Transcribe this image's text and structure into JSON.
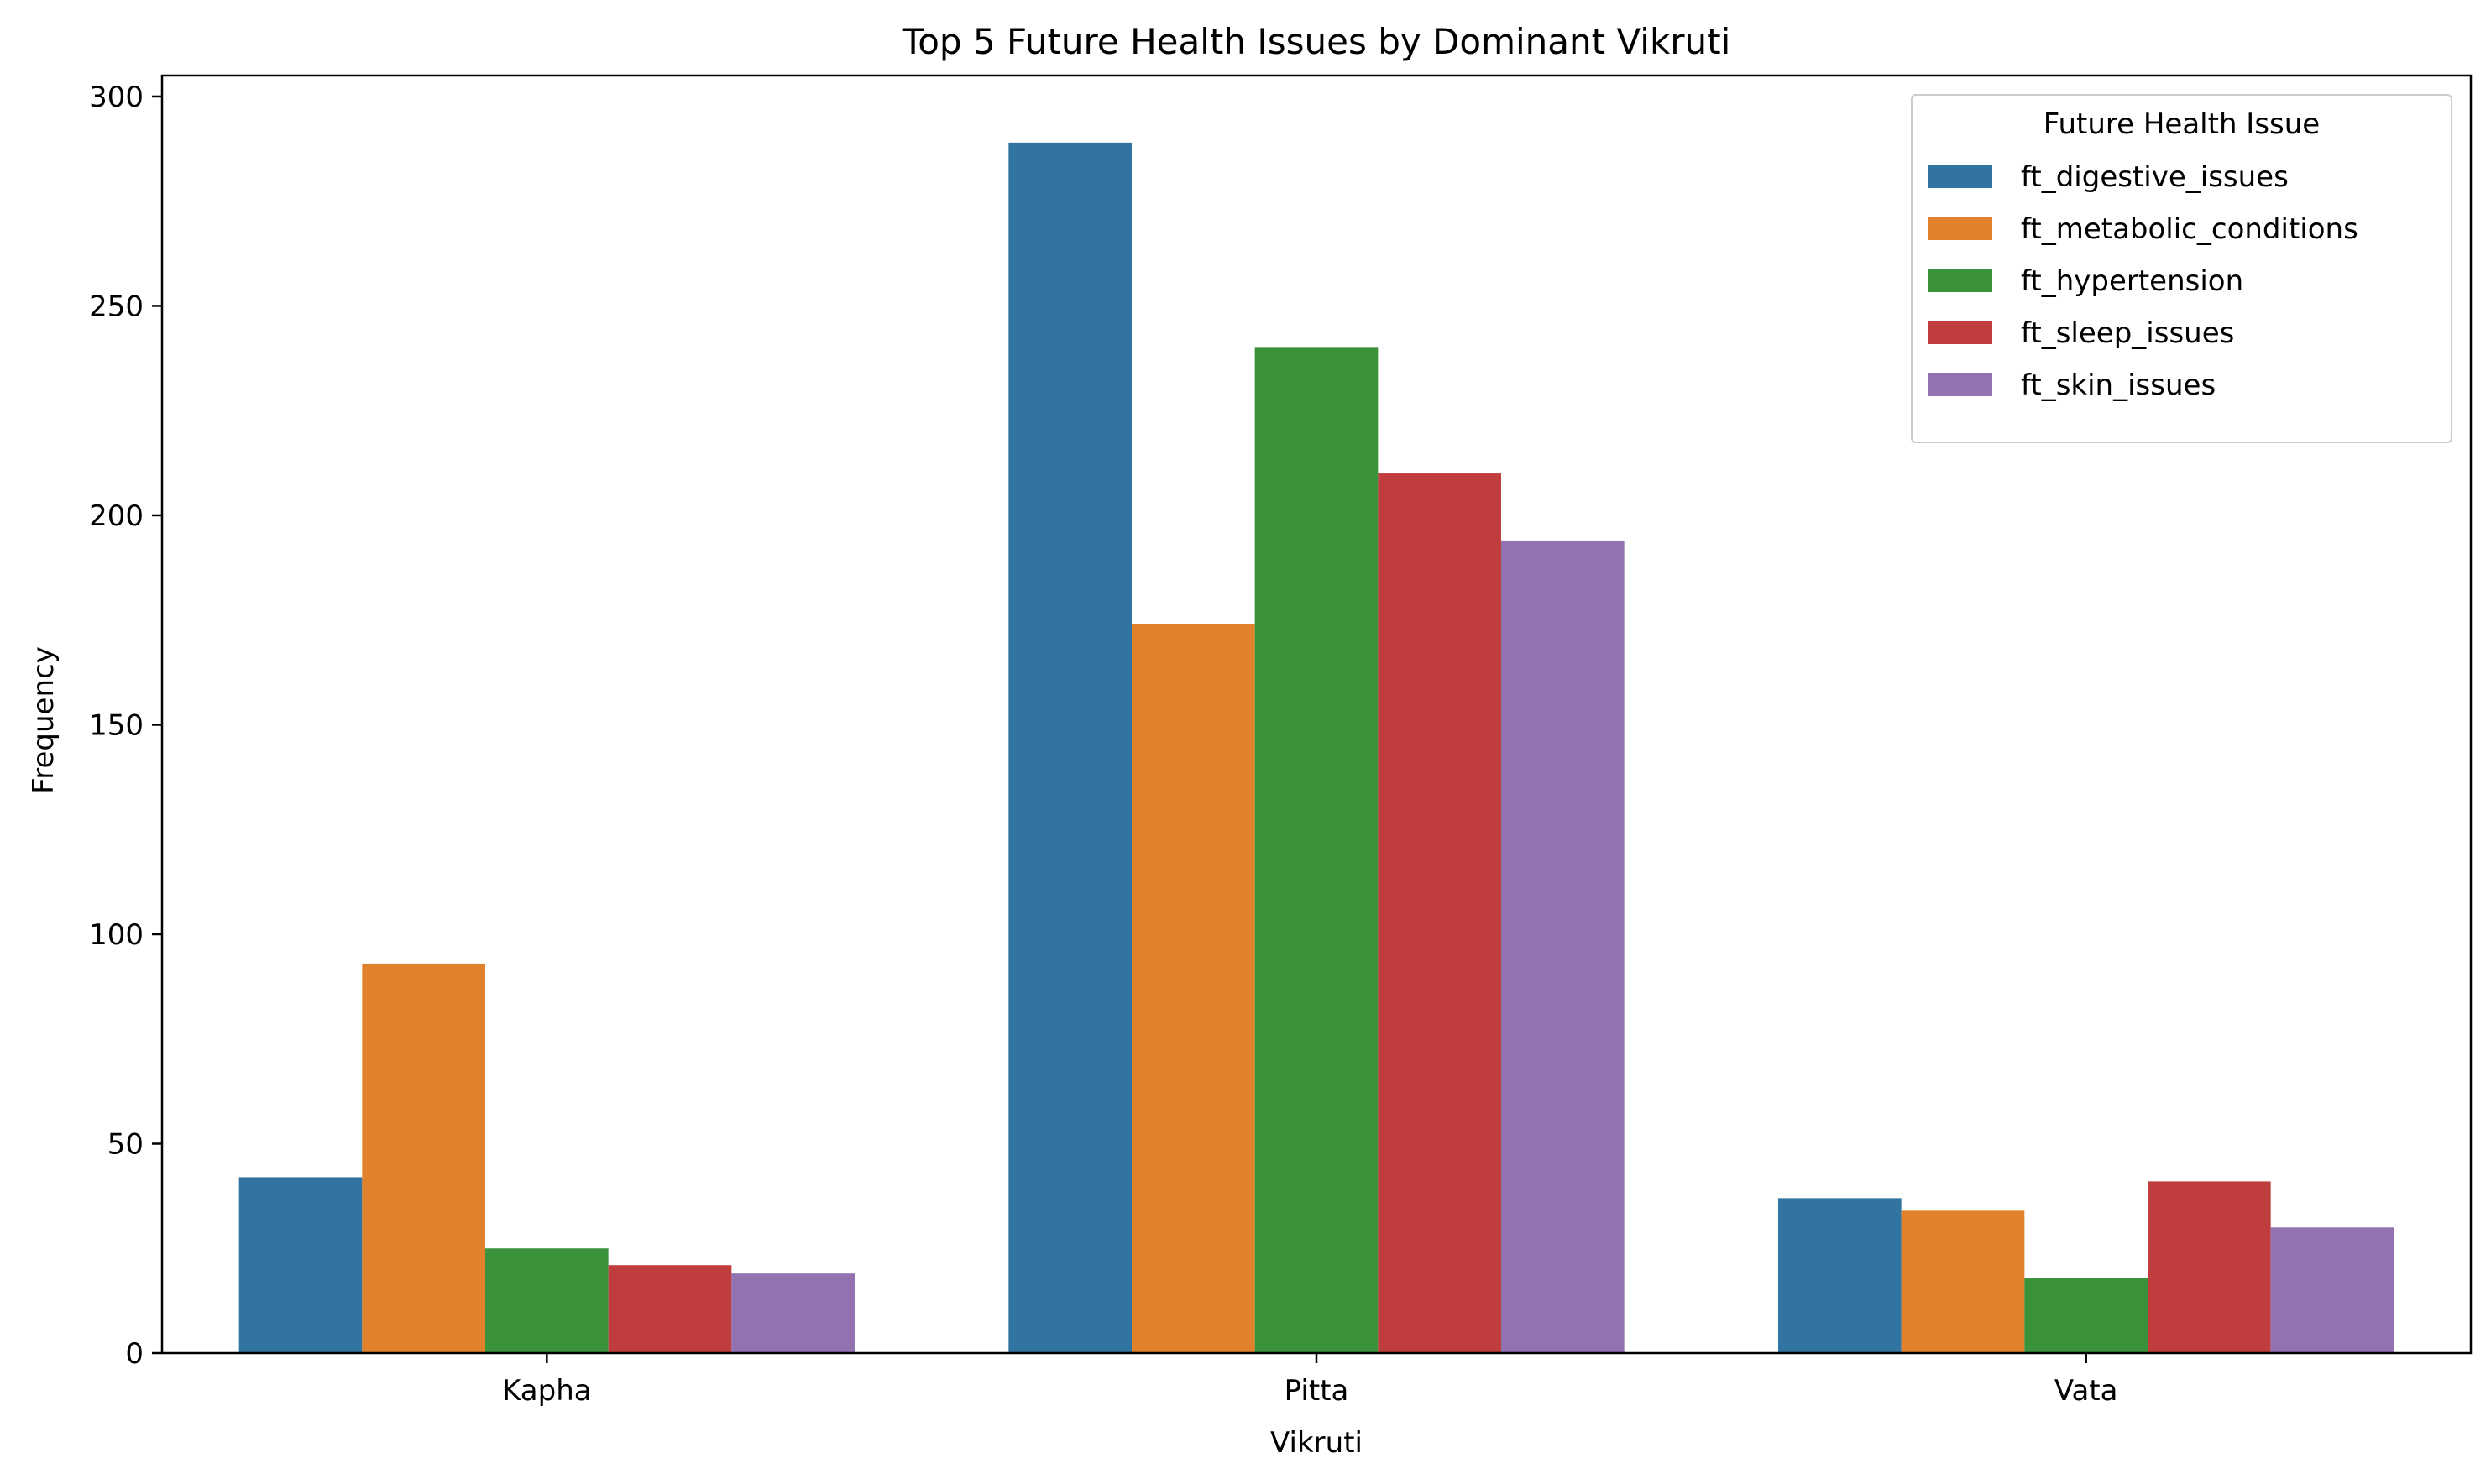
{
  "chart_data": {
    "type": "bar",
    "title": "Top 5 Future Health Issues by Dominant Vikruti",
    "xlabel": "Vikruti",
    "ylabel": "Frequency",
    "categories": [
      "Kapha",
      "Pitta",
      "Vata"
    ],
    "ylim": [
      0,
      305
    ],
    "yticks": [
      0,
      50,
      100,
      150,
      200,
      250,
      300
    ],
    "grid": false,
    "legend": {
      "title": "Future Health Issue",
      "placement": "top-right"
    },
    "series": [
      {
        "name": "ft_digestive_issues",
        "color": "#3274a1",
        "values": [
          42,
          289,
          37
        ]
      },
      {
        "name": "ft_metabolic_conditions",
        "color": "#e1812c",
        "values": [
          93,
          174,
          34
        ]
      },
      {
        "name": "ft_hypertension",
        "color": "#3a923a",
        "values": [
          25,
          240,
          18
        ]
      },
      {
        "name": "ft_sleep_issues",
        "color": "#c03d3e",
        "values": [
          21,
          210,
          41
        ]
      },
      {
        "name": "ft_skin_issues",
        "color": "#9372b2",
        "values": [
          19,
          194,
          30
        ]
      }
    ]
  }
}
